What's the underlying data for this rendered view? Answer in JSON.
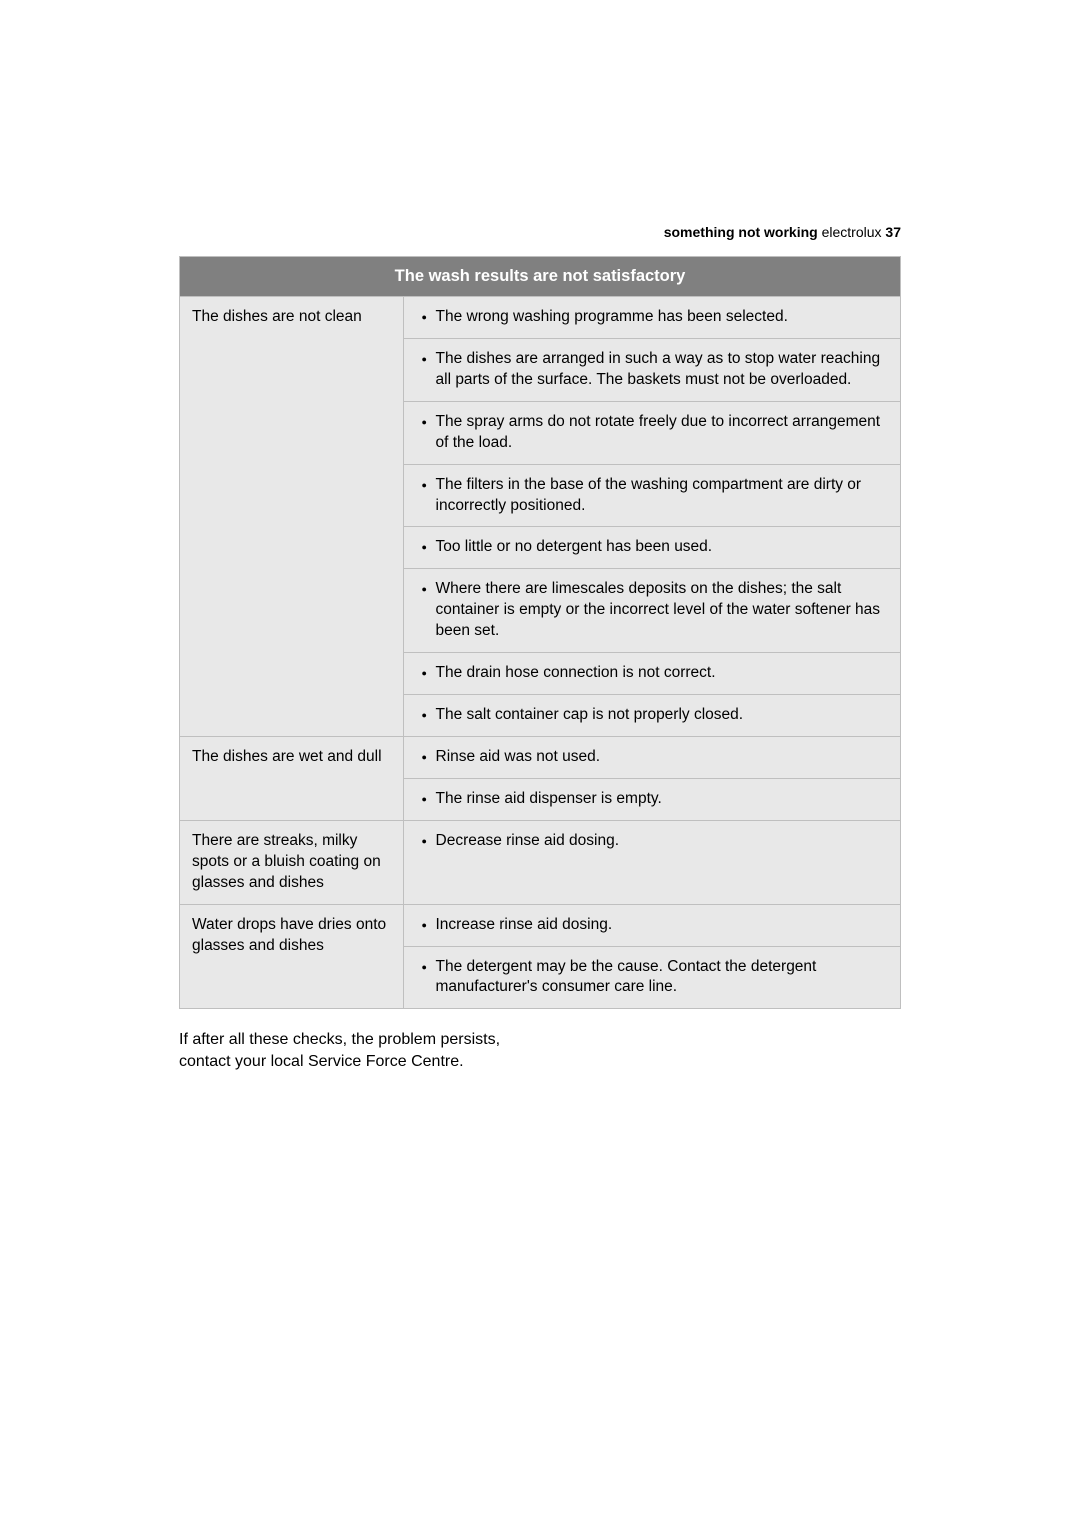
{
  "header": {
    "section": "something not working",
    "brand": "electrolux",
    "page_number": "37"
  },
  "table": {
    "title": "The wash results are not satisfactory",
    "col_widths": [
      "31%",
      "69%"
    ],
    "rows": [
      {
        "problem": "The dishes are not clean",
        "causes": [
          "The wrong washing programme has been selected.",
          "The dishes are arranged in such a way as to stop water reaching all parts of the surface. The baskets must not be overloaded.",
          "The spray arms do not rotate freely due to incorrect arrangement of the load.",
          "The filters in the base of the washing compartment are dirty or incorrectly positioned.",
          "Too little or no detergent has been used.",
          "Where there are limescales deposits on the dishes; the salt container is empty or the incorrect level of the water softener has been set.",
          "The drain hose connection is not correct.",
          "The salt container cap is not properly closed."
        ]
      },
      {
        "problem": "The dishes are wet and dull",
        "causes": [
          "Rinse aid was not used.",
          "The rinse aid dispenser is empty."
        ]
      },
      {
        "problem": "There are streaks, milky spots or a bluish coating on glasses and dishes",
        "causes": [
          "Decrease rinse aid dosing."
        ]
      },
      {
        "problem": "Water drops have dries onto glasses and dishes",
        "causes": [
          "Increase rinse aid dosing.",
          "The detergent may be the cause. Contact the detergent manufacturer's consumer care line."
        ]
      }
    ]
  },
  "footer_note": "If after all these checks, the problem persists, contact your local Service Force Centre.",
  "colors": {
    "header_bg": "#808080",
    "header_text": "#ffffff",
    "cell_bg": "#e8e8e8",
    "border": "#bfbfbf",
    "text": "#000000",
    "page_bg": "#ffffff"
  }
}
